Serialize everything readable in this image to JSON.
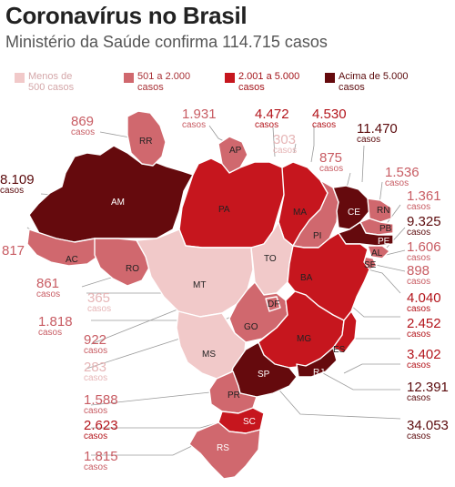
{
  "header": {
    "title": "Coronavírus no Brasil",
    "subtitle": "Ministério da Saúde confirma 114.715 casos"
  },
  "colors": {
    "c1": "#f1c9c9",
    "c2": "#d0686e",
    "c3": "#c6161e",
    "c4": "#650a0d"
  },
  "legend": [
    {
      "label": "Menos de\n500 casos",
      "color": "#f1c9c9"
    },
    {
      "label": "501 a 2.000\ncasos",
      "color": "#d0686e"
    },
    {
      "label": "2.001 a 5.000\ncasos",
      "color": "#c6161e"
    },
    {
      "label": "Acima de 5.000\ncasos",
      "color": "#650a0d"
    }
  ],
  "unit": "casos",
  "states": [
    {
      "uf": "RR",
      "cases": "869",
      "tier": 2
    },
    {
      "uf": "AP",
      "cases": "1.931",
      "tier": 2
    },
    {
      "uf": "PA",
      "cases": "4.472",
      "tier": 3
    },
    {
      "uf": "MA",
      "cases": "4.530",
      "tier": 3
    },
    {
      "uf": "CE",
      "cases": "11.470",
      "tier": 4
    },
    {
      "uf": "AM",
      "cases": "8.109",
      "tier": 4
    },
    {
      "uf": "TO",
      "cases": "303",
      "tier": 1
    },
    {
      "uf": "PI",
      "cases": "875",
      "tier": 2
    },
    {
      "uf": "RN",
      "cases": "1.536",
      "tier": 2
    },
    {
      "uf": "PB",
      "cases": "1.361",
      "tier": 2
    },
    {
      "uf": "PE",
      "cases": "9.325",
      "tier": 4
    },
    {
      "uf": "AC",
      "cases": "817",
      "tier": 2
    },
    {
      "uf": "AL",
      "cases": "1.606",
      "tier": 2
    },
    {
      "uf": "RO",
      "cases": "861",
      "tier": 2
    },
    {
      "uf": "SE",
      "cases": "898",
      "tier": 2
    },
    {
      "uf": "MT",
      "cases": "365",
      "tier": 1
    },
    {
      "uf": "BA",
      "cases": "4.040",
      "tier": 3
    },
    {
      "uf": "DF",
      "cases": "1.818",
      "tier": 2
    },
    {
      "uf": "GO",
      "cases": "922",
      "tier": 2
    },
    {
      "uf": "MG",
      "cases": "2.452",
      "tier": 3
    },
    {
      "uf": "MS",
      "cases": "283",
      "tier": 1
    },
    {
      "uf": "ES",
      "cases": "3.402",
      "tier": 3
    },
    {
      "uf": "PR",
      "cases": "1.588",
      "tier": 2
    },
    {
      "uf": "RJ",
      "cases": "12.391",
      "tier": 4
    },
    {
      "uf": "SC",
      "cases": "2.623",
      "tier": 3
    },
    {
      "uf": "SP",
      "cases": "34.053",
      "tier": 4
    },
    {
      "uf": "RS",
      "cases": "1.815",
      "tier": 2
    }
  ]
}
